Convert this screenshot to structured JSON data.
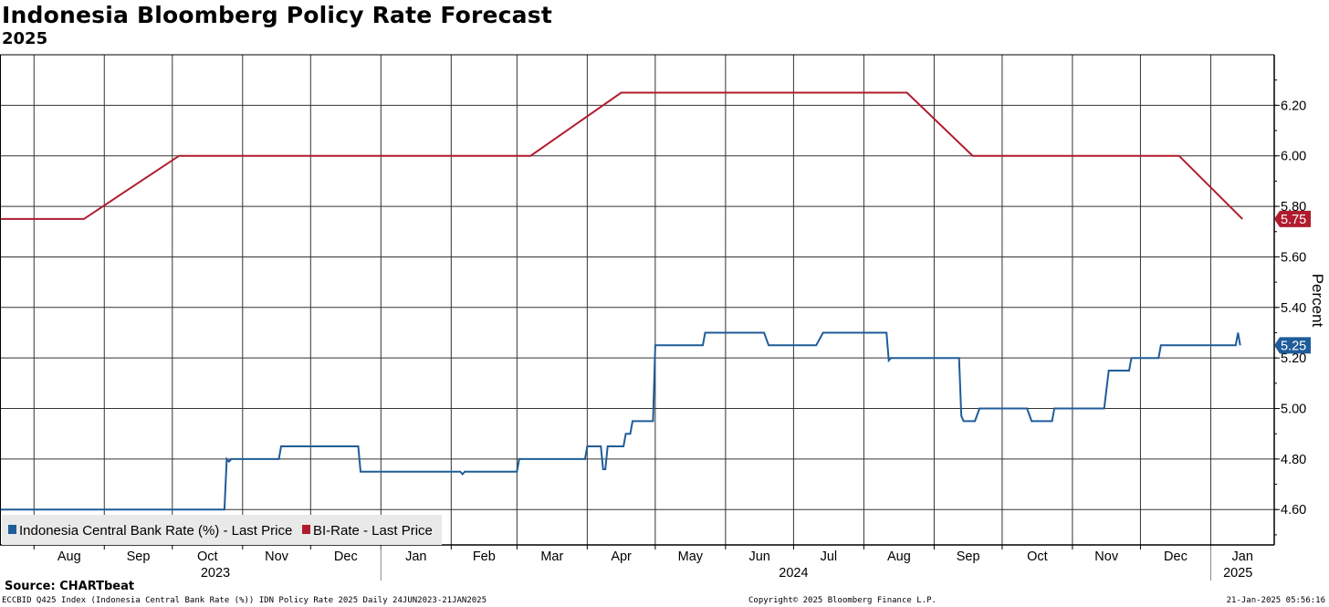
{
  "chart_data": {
    "type": "line",
    "title": "Indonesia Bloomberg Policy Rate Forecast",
    "subtitle": "2025",
    "ylabel": "Percent",
    "ylim": [
      4.46,
      6.4
    ],
    "yticks": [
      "4.60",
      "4.80",
      "5.00",
      "5.20",
      "5.40",
      "5.60",
      "5.80",
      "6.00",
      "6.20"
    ],
    "xrange": [
      "2023-07-17",
      "2025-01-29"
    ],
    "month_ticks": [
      {
        "label": "Aug",
        "date": "2023-08-01"
      },
      {
        "label": "Sep",
        "date": "2023-09-01"
      },
      {
        "label": "Oct",
        "date": "2023-10-01"
      },
      {
        "label": "Nov",
        "date": "2023-11-01"
      },
      {
        "label": "Dec",
        "date": "2023-12-01"
      },
      {
        "label": "Jan",
        "date": "2024-01-01"
      },
      {
        "label": "Feb",
        "date": "2024-02-01"
      },
      {
        "label": "Mar",
        "date": "2024-03-01"
      },
      {
        "label": "Apr",
        "date": "2024-04-01"
      },
      {
        "label": "May",
        "date": "2024-05-01"
      },
      {
        "label": "Jun",
        "date": "2024-06-01"
      },
      {
        "label": "Jul",
        "date": "2024-07-01"
      },
      {
        "label": "Aug",
        "date": "2024-08-01"
      },
      {
        "label": "Sep",
        "date": "2024-09-01"
      },
      {
        "label": "Oct",
        "date": "2024-10-01"
      },
      {
        "label": "Nov",
        "date": "2024-11-01"
      },
      {
        "label": "Dec",
        "date": "2024-12-01"
      },
      {
        "label": "Jan",
        "date": "2025-01-01"
      }
    ],
    "year_labels": [
      {
        "label": "2023",
        "date": "2023-10-20"
      },
      {
        "label": "2024",
        "date": "2024-07-01"
      },
      {
        "label": "2025",
        "date": "2025-01-13"
      }
    ],
    "year_separators": [
      "2024-01-01",
      "2025-01-01"
    ],
    "grid": true,
    "legend_position": "bottom-left",
    "series": [
      {
        "name": "Indonesia Central Bank Rate (%) - Last Price",
        "color": "#1F5C99",
        "last_value_label": "5.25",
        "points": [
          [
            "2023-07-17",
            4.6
          ],
          [
            "2023-10-24",
            4.6
          ],
          [
            "2023-10-25",
            4.8
          ],
          [
            "2023-10-26",
            4.79
          ],
          [
            "2023-10-27",
            4.8
          ],
          [
            "2023-11-17",
            4.8
          ],
          [
            "2023-11-18",
            4.85
          ],
          [
            "2023-12-22",
            4.85
          ],
          [
            "2023-12-23",
            4.75
          ],
          [
            "2024-02-05",
            4.75
          ],
          [
            "2024-02-06",
            4.74
          ],
          [
            "2024-02-07",
            4.75
          ],
          [
            "2024-03-01",
            4.75
          ],
          [
            "2024-03-02",
            4.8
          ],
          [
            "2024-03-31",
            4.8
          ],
          [
            "2024-04-01",
            4.85
          ],
          [
            "2024-04-07",
            4.85
          ],
          [
            "2024-04-08",
            4.76
          ],
          [
            "2024-04-09",
            4.76
          ],
          [
            "2024-04-10",
            4.85
          ],
          [
            "2024-04-17",
            4.85
          ],
          [
            "2024-04-18",
            4.9
          ],
          [
            "2024-04-20",
            4.9
          ],
          [
            "2024-04-21",
            4.95
          ],
          [
            "2024-04-30",
            4.95
          ],
          [
            "2024-05-01",
            5.25
          ],
          [
            "2024-05-22",
            5.25
          ],
          [
            "2024-05-23",
            5.3
          ],
          [
            "2024-06-18",
            5.3
          ],
          [
            "2024-06-20",
            5.25
          ],
          [
            "2024-07-11",
            5.25
          ],
          [
            "2024-07-14",
            5.3
          ],
          [
            "2024-08-11",
            5.3
          ],
          [
            "2024-08-12",
            5.19
          ],
          [
            "2024-08-13",
            5.2
          ],
          [
            "2024-09-12",
            5.2
          ],
          [
            "2024-09-13",
            4.97
          ],
          [
            "2024-09-14",
            4.95
          ],
          [
            "2024-09-19",
            4.95
          ],
          [
            "2024-09-21",
            5.0
          ],
          [
            "2024-10-12",
            5.0
          ],
          [
            "2024-10-14",
            4.95
          ],
          [
            "2024-10-23",
            4.95
          ],
          [
            "2024-10-24",
            5.0
          ],
          [
            "2024-11-15",
            5.0
          ],
          [
            "2024-11-17",
            5.15
          ],
          [
            "2024-11-26",
            5.15
          ],
          [
            "2024-11-27",
            5.2
          ],
          [
            "2024-12-09",
            5.2
          ],
          [
            "2024-12-10",
            5.25
          ],
          [
            "2025-01-12",
            5.25
          ],
          [
            "2025-01-13",
            5.3
          ],
          [
            "2025-01-14",
            5.25
          ]
        ]
      },
      {
        "name": "BI-Rate - Last Price",
        "color": "#B01C2E",
        "last_value_label": "5.75",
        "points": [
          [
            "2023-07-17",
            5.75
          ],
          [
            "2023-08-23",
            5.75
          ],
          [
            "2023-10-04",
            6.0
          ],
          [
            "2024-03-07",
            6.0
          ],
          [
            "2024-04-16",
            6.25
          ],
          [
            "2024-08-20",
            6.25
          ],
          [
            "2024-09-18",
            6.0
          ],
          [
            "2024-12-18",
            6.0
          ],
          [
            "2025-01-15",
            5.75
          ]
        ]
      }
    ]
  },
  "source": "Source: CHARTbeat",
  "footer": {
    "left": "ECCBID Q425 Index (Indonesia Central Bank Rate (%)) IDN Policy Rate 2025  Daily 24JUN2023-21JAN2025",
    "center": "Copyright© 2025 Bloomberg Finance L.P.",
    "right": "21-Jan-2025 05:56:16"
  }
}
